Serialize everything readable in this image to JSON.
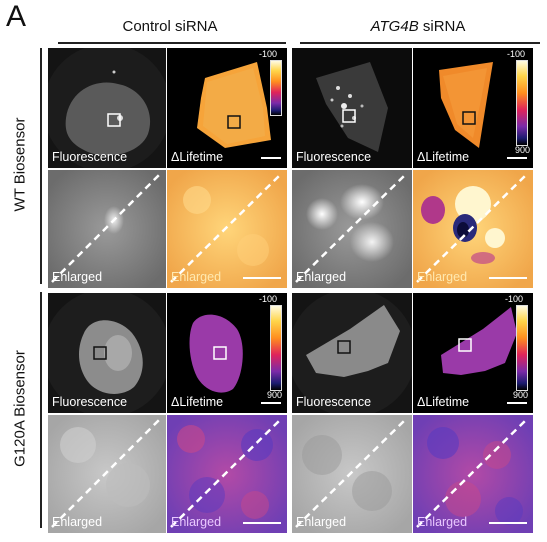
{
  "panel_letter": "A",
  "columns": {
    "control_label": "Control siRNA",
    "atg4b_gene": "ATG4B",
    "atg4b_suffix": " siRNA"
  },
  "rows": {
    "wt": "WT Biosensor",
    "g120a": "G120A Biosensor"
  },
  "tile_labels": {
    "fluorescence": "Fluorescence",
    "lifetime": "ΔLifetime",
    "enlarged": "Enlarged"
  },
  "colorbar": {
    "top": "-100",
    "bottom": "900"
  }
}
